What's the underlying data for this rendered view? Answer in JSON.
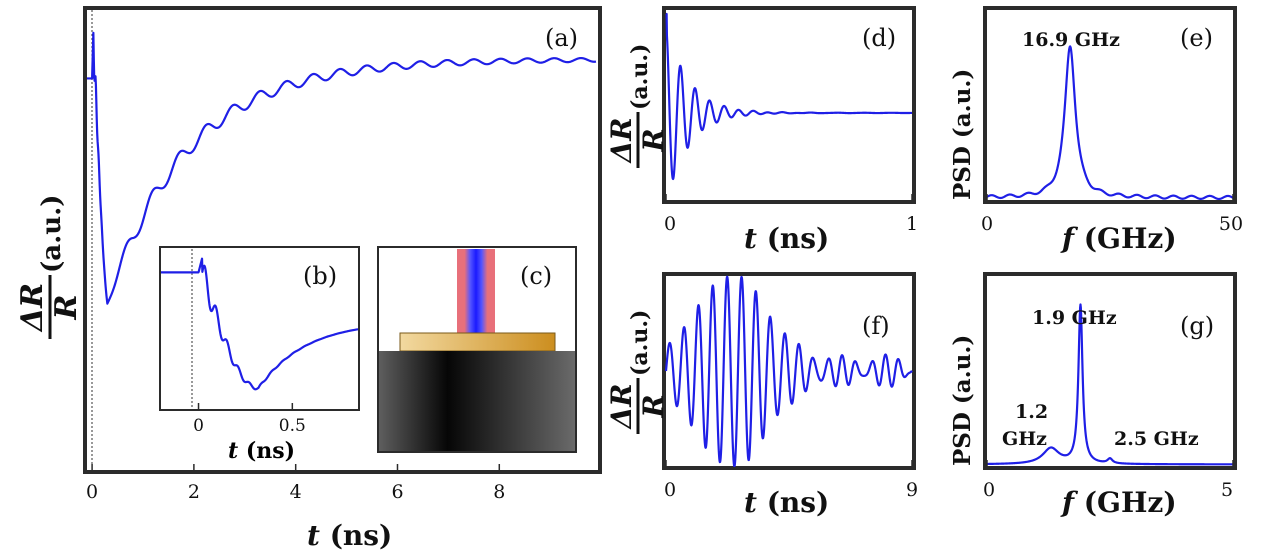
{
  "chart_data": [
    {
      "panel": "(a)",
      "type": "line",
      "xlabel_var": "t",
      "xlabel_unit": "(ns)",
      "ylabel_num": "ΔR",
      "ylabel_den": "R",
      "ylabel_unit": "(a.u.)",
      "xlim": [
        -0.1,
        9.9
      ],
      "ylim": [
        -1.08,
        0.6
      ],
      "xticks": [
        0,
        2,
        4,
        6,
        8
      ],
      "xtick_labels": [
        "0",
        "2",
        "4",
        "6",
        "8"
      ],
      "zero_line": true
    },
    {
      "panel": "(b)",
      "type": "line",
      "xlabel_var": "t",
      "xlabel_unit": "(ns)",
      "xlim": [
        -0.2,
        0.85
      ],
      "ylim": [
        -1.12,
        0.2
      ],
      "xticks": [
        0,
        0.5
      ],
      "xtick_labels": [
        "0",
        "0.5"
      ],
      "zero_line": true
    },
    {
      "panel": "(c)",
      "type": "schematic"
    },
    {
      "panel": "(d)",
      "type": "line",
      "xlabel_var": "t",
      "xlabel_unit": "(ns)",
      "ylabel_num": "ΔR",
      "ylabel_den": "R",
      "ylabel_unit": "(a.u.)",
      "xlim": [
        0,
        1
      ],
      "ylim": [
        -1.1,
        1.3
      ],
      "xticks": [
        0,
        1
      ],
      "xtick_labels": [
        "0",
        "1"
      ]
    },
    {
      "panel": "(e)",
      "type": "line",
      "xlabel_var": "f",
      "xlabel_unit": "(GHz)",
      "ylabel_text": "PSD (a.u.)",
      "xlim": [
        0,
        50
      ],
      "ylim": [
        0,
        1.25
      ],
      "xticks": [
        0,
        50
      ],
      "xtick_labels": [
        "0",
        "50"
      ],
      "annotations": [
        {
          "text": "16.9 GHz",
          "x": 16.9
        }
      ]
    },
    {
      "panel": "(f)",
      "type": "line",
      "xlabel_var": "t",
      "xlabel_unit": "(ns)",
      "ylabel_num": "ΔR",
      "ylabel_den": "R",
      "ylabel_unit": "(a.u.)",
      "xlim": [
        0,
        9
      ],
      "ylim": [
        -1.1,
        1.1
      ],
      "xticks": [
        0,
        9
      ],
      "xtick_labels": [
        "0",
        "9"
      ]
    },
    {
      "panel": "(g)",
      "type": "line",
      "xlabel_var": "f",
      "xlabel_unit": "(GHz)",
      "ylabel_text": "PSD (a.u.)",
      "xlim": [
        0,
        5
      ],
      "ylim": [
        0,
        1.2
      ],
      "xticks": [
        0,
        5
      ],
      "xtick_labels": [
        "0",
        "5"
      ],
      "annotations": [
        {
          "text": "1.9 GHz",
          "x": 1.9
        },
        {
          "text": "1.2",
          "x": 1.2
        },
        {
          "text": "GHz",
          "x": 1.2
        },
        {
          "text": "2.5 GHz",
          "x": 2.5
        }
      ]
    }
  ],
  "colors": {
    "curve": "#1f1fe6",
    "frame": "#2b2b2b",
    "laser_core": "#1a1aff",
    "laser_halo": "#e8707a",
    "film": "#e0a93a",
    "substrate": "#141414"
  }
}
